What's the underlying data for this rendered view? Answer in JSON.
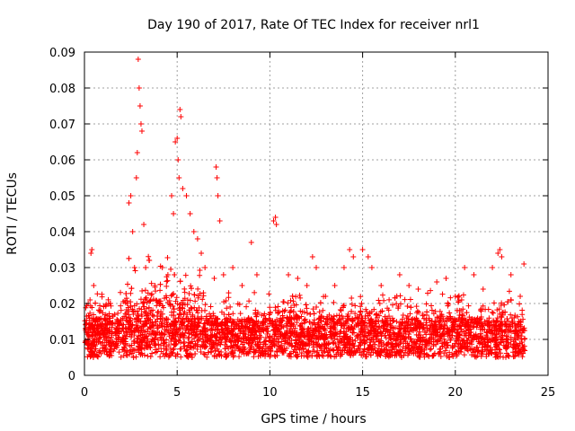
{
  "chart_data": {
    "type": "scatter",
    "title": "Day 190 of 2017, Rate Of TEC Index for receiver nrl1",
    "xlabel": "GPS time / hours",
    "ylabel": "ROTI / TECUs",
    "xlim": [
      0,
      25
    ],
    "ylim": [
      0,
      0.09
    ],
    "x_ticks": [
      0,
      5,
      10,
      15,
      20,
      25
    ],
    "x_tick_labels": [
      "0",
      "5",
      "10",
      "15",
      "20",
      "25"
    ],
    "y_ticks": [
      0,
      0.01,
      0.02,
      0.03,
      0.04,
      0.05,
      0.06,
      0.07,
      0.08,
      0.09
    ],
    "y_tick_labels": [
      "0",
      "0.01",
      "0.02",
      "0.03",
      "0.04",
      "0.05",
      "0.06",
      "0.07",
      "0.08",
      "0.09"
    ],
    "grid": true,
    "marker": "plus",
    "color": "#ff0000",
    "x_range_of_data": [
      0,
      23.75
    ],
    "series": [
      {
        "name": "ROTI",
        "x": [
          0.1,
          0.2,
          0.3,
          0.35,
          0.4,
          0.5,
          0.6,
          1.1,
          1.2,
          1.5,
          2.3,
          2.4,
          2.5,
          2.6,
          2.7,
          2.8,
          2.85,
          2.9,
          2.95,
          3.0,
          3.05,
          3.1,
          3.2,
          3.3,
          3.5,
          3.8,
          4.2,
          4.5,
          4.7,
          4.8,
          4.9,
          5.0,
          5.05,
          5.1,
          5.15,
          5.2,
          5.3,
          5.5,
          5.7,
          5.9,
          6.1,
          6.3,
          6.5,
          7.0,
          7.1,
          7.15,
          7.2,
          7.3,
          7.5,
          8.0,
          8.5,
          9.0,
          9.3,
          10.2,
          10.3,
          10.35,
          11.0,
          11.5,
          12.0,
          12.3,
          12.5,
          13.0,
          13.5,
          14.0,
          14.3,
          14.5,
          15.0,
          15.3,
          15.5,
          16.0,
          17.0,
          17.5,
          18.0,
          19.0,
          19.5,
          20.0,
          20.5,
          21.0,
          21.5,
          22.0,
          22.3,
          22.4,
          22.5,
          23.0,
          23.5,
          23.7
        ],
        "y": [
          0.012,
          0.02,
          0.021,
          0.034,
          0.035,
          0.025,
          0.015,
          0.01,
          0.012,
          0.014,
          0.02,
          0.048,
          0.05,
          0.04,
          0.03,
          0.055,
          0.062,
          0.088,
          0.08,
          0.075,
          0.07,
          0.068,
          0.042,
          0.03,
          0.032,
          0.025,
          0.03,
          0.028,
          0.05,
          0.045,
          0.065,
          0.066,
          0.06,
          0.055,
          0.074,
          0.072,
          0.052,
          0.05,
          0.045,
          0.04,
          0.038,
          0.034,
          0.03,
          0.027,
          0.058,
          0.055,
          0.05,
          0.043,
          0.028,
          0.03,
          0.025,
          0.037,
          0.028,
          0.043,
          0.044,
          0.042,
          0.028,
          0.027,
          0.025,
          0.033,
          0.03,
          0.022,
          0.025,
          0.03,
          0.035,
          0.033,
          0.035,
          0.033,
          0.03,
          0.025,
          0.028,
          0.025,
          0.024,
          0.026,
          0.027,
          0.022,
          0.03,
          0.028,
          0.024,
          0.03,
          0.034,
          0.035,
          0.033,
          0.028,
          0.022,
          0.031
        ]
      }
    ]
  }
}
